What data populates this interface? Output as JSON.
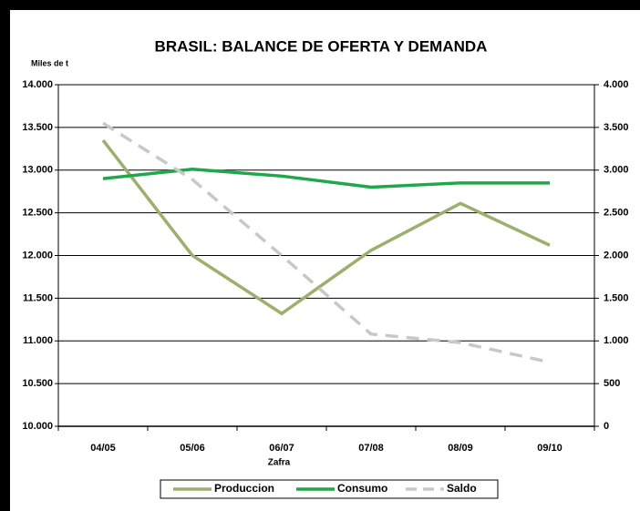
{
  "chart_data": {
    "type": "line",
    "title": "BRASIL: BALANCE DE OFERTA Y DEMANDA",
    "y_label": "Miles de t",
    "x_label": "Zafra",
    "categories": [
      "04/05",
      "05/06",
      "06/07",
      "07/08",
      "08/09",
      "09/10"
    ],
    "series": [
      {
        "name": "Produccion",
        "color": "#9bb06c",
        "values": [
          13350,
          12000,
          11320,
          12060,
          12610,
          12120
        ]
      },
      {
        "name": "Consumo",
        "color": "#1ea84a",
        "values": [
          12900,
          13010,
          12930,
          12800,
          12850,
          12850
        ]
      },
      {
        "name": "Saldo",
        "color": "#c8c8c8",
        "dashed": true,
        "axis": "y2",
        "values": [
          3550,
          2890,
          2000,
          1080,
          980,
          750
        ]
      }
    ],
    "ylim": [
      10000,
      14000
    ],
    "yticks": [
      {
        "value": 10000,
        "label": "10.000"
      },
      {
        "value": 10500,
        "label": "10.500"
      },
      {
        "value": 11000,
        "label": "11.000"
      },
      {
        "value": 11500,
        "label": "11.500"
      },
      {
        "value": 12000,
        "label": "12.000"
      },
      {
        "value": 12500,
        "label": "12.500"
      },
      {
        "value": 13000,
        "label": "13.000"
      },
      {
        "value": 13500,
        "label": "13.500"
      },
      {
        "value": 14000,
        "label": "14.000"
      }
    ],
    "y2lim": [
      0,
      4000
    ],
    "y2ticks": [
      0,
      500,
      {
        "value": 1000,
        "label": "1.000"
      },
      {
        "value": 1500,
        "label": "1.500"
      },
      {
        "value": 2000,
        "label": "2.000"
      },
      {
        "value": 2500,
        "label": "2.500"
      },
      {
        "value": 3000,
        "label": "3.000"
      },
      {
        "value": 3500,
        "label": "3.500"
      },
      {
        "value": 4000,
        "label": "4.000"
      }
    ],
    "grid": true,
    "legend": "bottom"
  }
}
